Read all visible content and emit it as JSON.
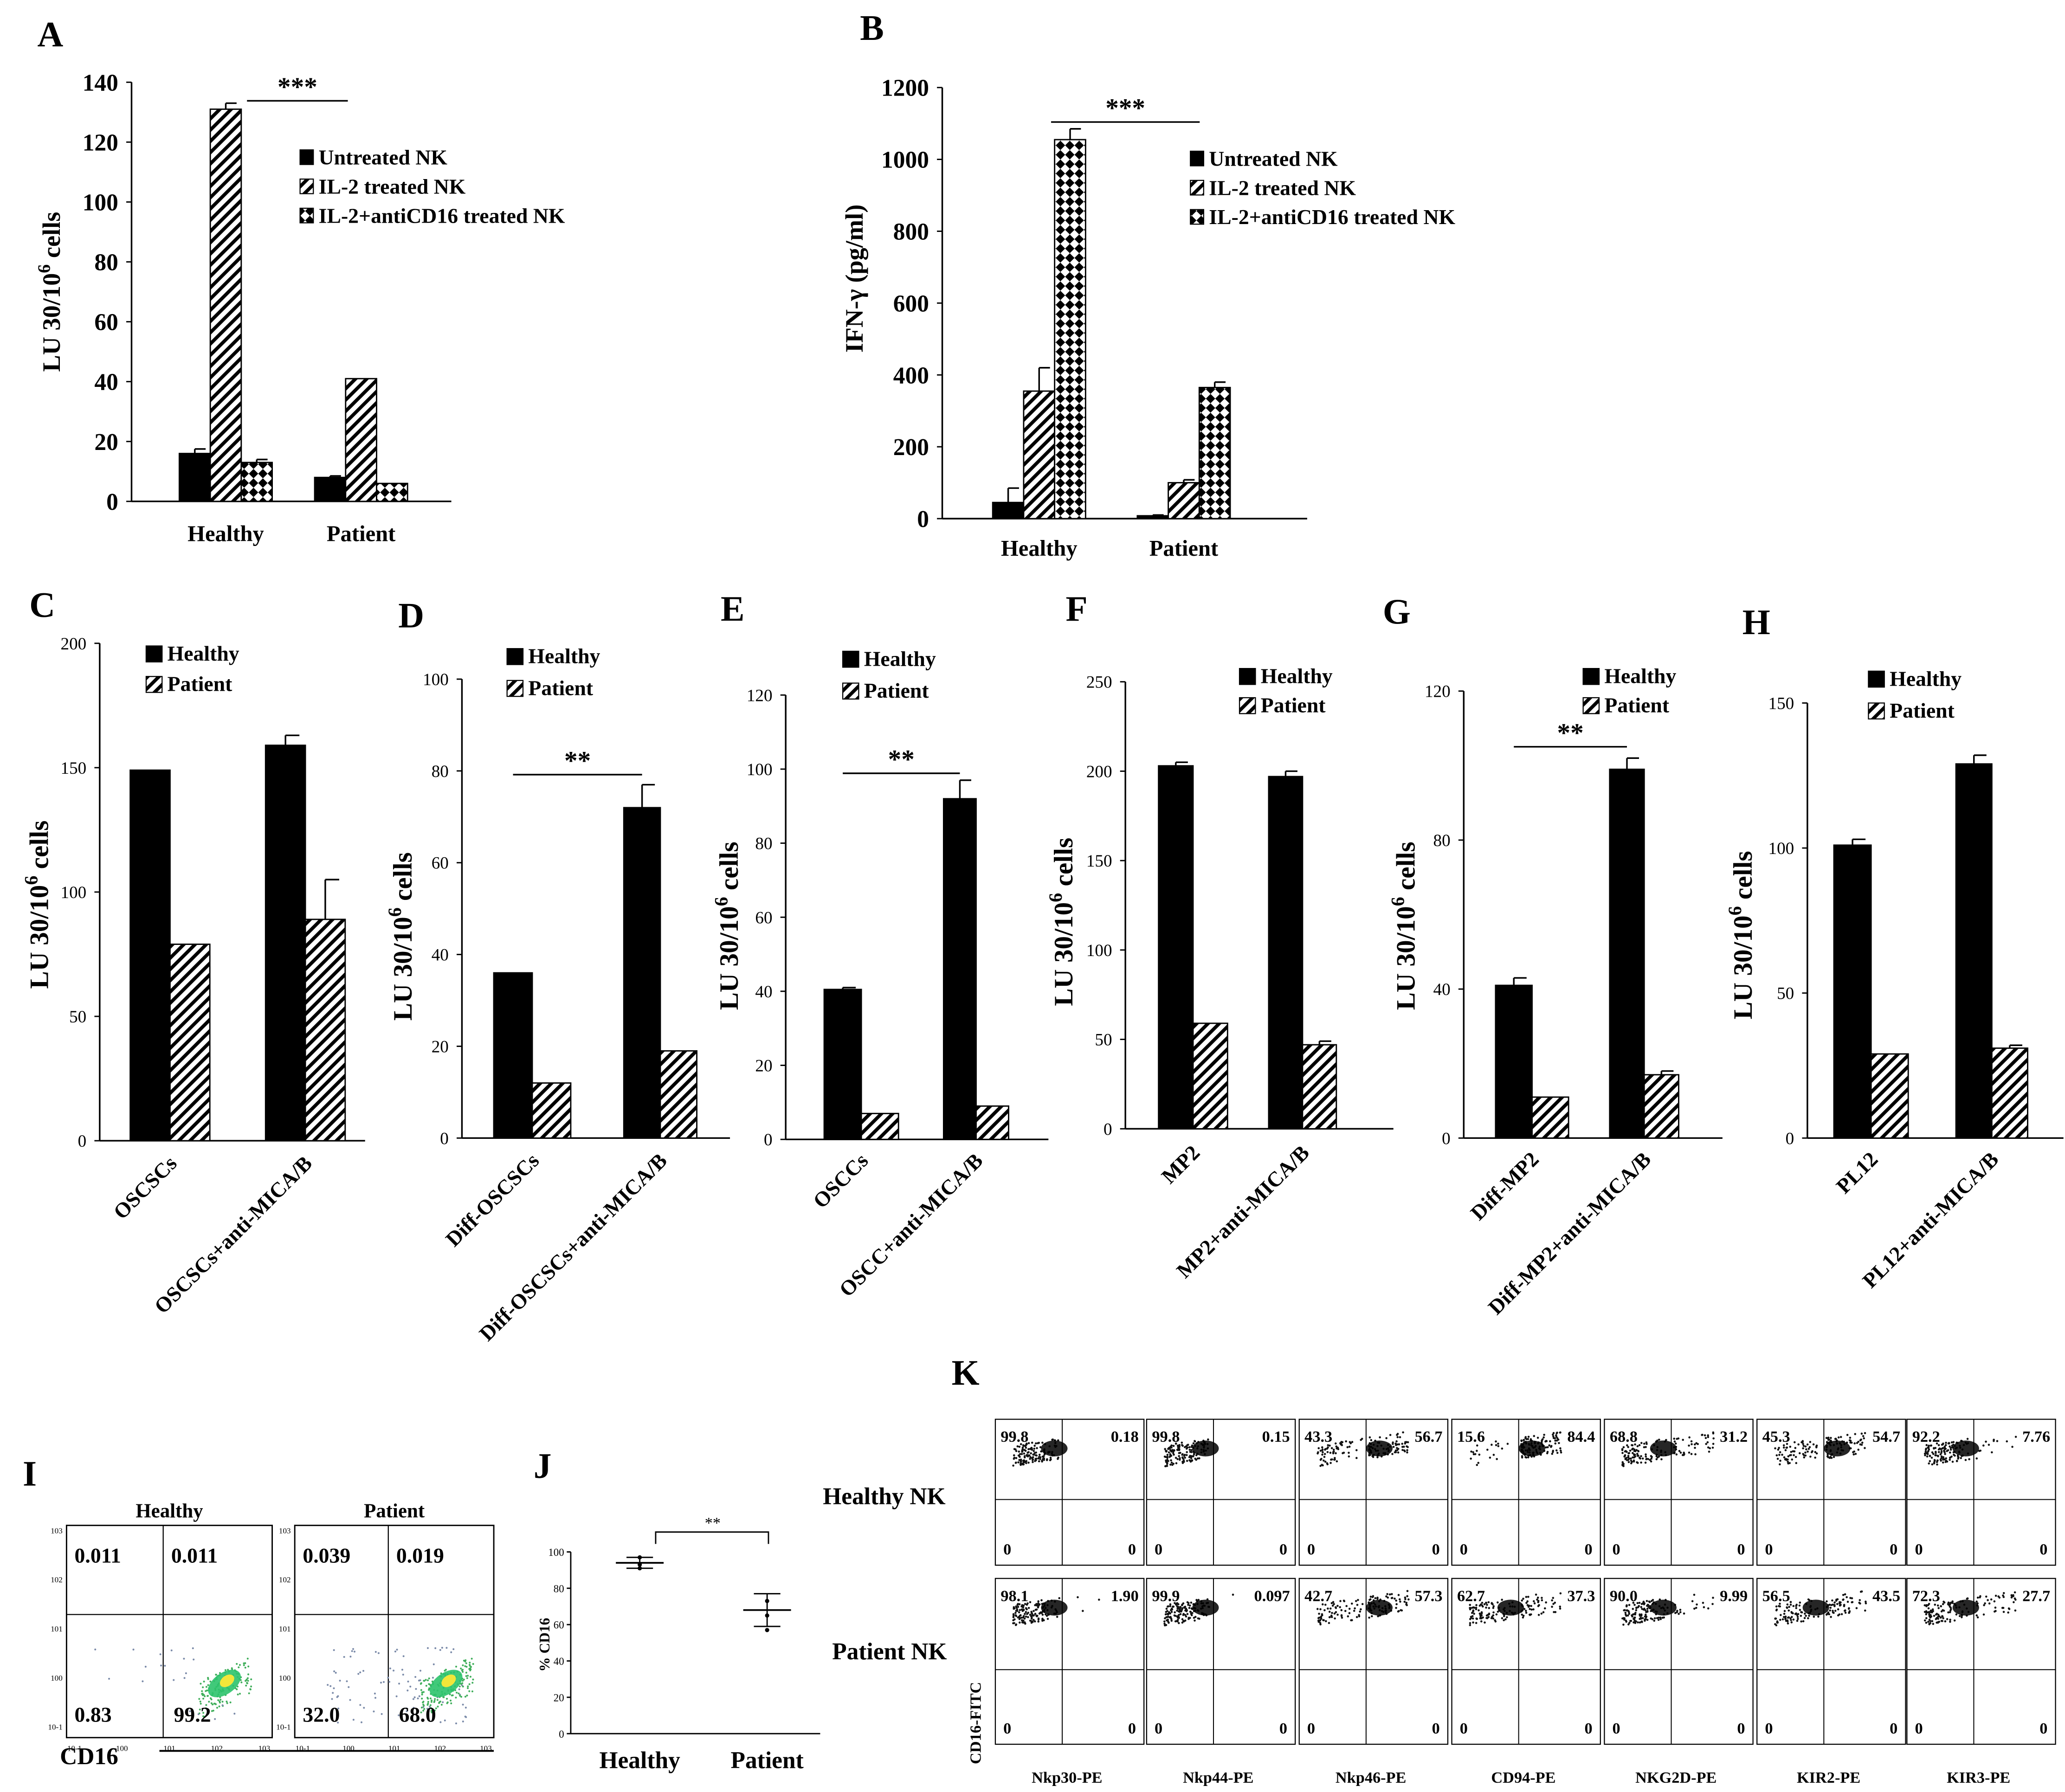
{
  "figure": {
    "chart_data": [
      {
        "panel": "A",
        "type": "bar",
        "categories": [
          "Healthy",
          "Patient"
        ],
        "ylabel": "LU 30/10^6 cells",
        "ylim": [
          0,
          140
        ],
        "yticks": [
          0,
          20,
          40,
          60,
          80,
          100,
          120,
          140
        ],
        "series": [
          {
            "name": "Untreated NK",
            "pattern": "solid",
            "values": [
              16,
              8
            ],
            "errors": [
              1.5,
              0.5
            ]
          },
          {
            "name": "IL-2 treated NK",
            "pattern": "diag",
            "values": [
              131,
              41
            ],
            "errors": [
              2,
              0
            ]
          },
          {
            "name": "IL-2+antiCD16 treated NK",
            "pattern": "checker",
            "values": [
              13,
              6
            ],
            "errors": [
              1,
              0
            ]
          }
        ],
        "significance": [
          {
            "label": "***",
            "from": [
              0,
              1
            ],
            "to": [
              1,
              0
            ]
          }
        ]
      },
      {
        "panel": "B",
        "type": "bar",
        "categories": [
          "Healthy",
          "Patient"
        ],
        "ylabel": "IFN-γ (pg/ml)",
        "ylim": [
          0,
          1200
        ],
        "yticks": [
          0,
          200,
          400,
          600,
          800,
          1000,
          1200
        ],
        "series": [
          {
            "name": "Untreated NK",
            "pattern": "solid",
            "values": [
              45,
              8
            ],
            "errors": [
              40,
              2
            ]
          },
          {
            "name": "IL-2 treated NK",
            "pattern": "diag",
            "values": [
              355,
              100
            ],
            "errors": [
              65,
              8
            ]
          },
          {
            "name": "IL-2+antiCD16 treated NK",
            "pattern": "checker",
            "values": [
              1055,
              365
            ],
            "errors": [
              30,
              15
            ]
          }
        ],
        "significance": [
          {
            "label": "***",
            "from": [
              0,
              2
            ],
            "to": [
              1,
              0
            ]
          }
        ]
      },
      {
        "panel": "C",
        "type": "bar",
        "categories": [
          "OSCSCs",
          "OSCSCs+anti-MICA/B"
        ],
        "ylabel": "LU 30/10^6 cells",
        "ylim": [
          0,
          200
        ],
        "yticks": [
          0,
          50,
          100,
          150,
          200
        ],
        "series": [
          {
            "name": "Healthy",
            "pattern": "solid",
            "values": [
              149,
              159
            ],
            "errors": [
              0,
              4
            ]
          },
          {
            "name": "Patient",
            "pattern": "diag",
            "values": [
              79,
              89
            ],
            "errors": [
              0,
              16
            ]
          }
        ],
        "significance": []
      },
      {
        "panel": "D",
        "type": "bar",
        "categories": [
          "Diff-OSCSCs",
          "Diff-OSCSCs+anti-MICA/B"
        ],
        "ylabel": "LU 30/10^6 cells",
        "ylim": [
          0,
          100
        ],
        "yticks": [
          0,
          20,
          40,
          60,
          80,
          100
        ],
        "series": [
          {
            "name": "Healthy",
            "pattern": "solid",
            "values": [
              36,
              72
            ],
            "errors": [
              0,
              5
            ]
          },
          {
            "name": "Patient",
            "pattern": "diag",
            "values": [
              12,
              19
            ],
            "errors": [
              0,
              0
            ]
          }
        ],
        "significance": [
          {
            "label": "**",
            "from": [
              0,
              0
            ],
            "to": [
              1,
              0
            ]
          }
        ]
      },
      {
        "panel": "E",
        "type": "bar",
        "categories": [
          "OSCCs",
          "OSCC+anti-MICA/B"
        ],
        "ylabel": "LU 30/10^6 cells",
        "ylim": [
          0,
          120
        ],
        "yticks": [
          0,
          20,
          40,
          60,
          80,
          100,
          120
        ],
        "series": [
          {
            "name": "Healthy",
            "pattern": "solid",
            "values": [
              40.5,
              92
            ],
            "errors": [
              0.5,
              5
            ]
          },
          {
            "name": "Patient",
            "pattern": "diag",
            "values": [
              7,
              9
            ],
            "errors": [
              0,
              0
            ]
          }
        ],
        "significance": [
          {
            "label": "**",
            "from": [
              0,
              0
            ],
            "to": [
              1,
              0
            ]
          }
        ]
      },
      {
        "panel": "F",
        "type": "bar",
        "categories": [
          "MP2",
          "MP2+anti-MICA/B"
        ],
        "ylabel": "LU 30/10^6 cells",
        "ylim": [
          0,
          250
        ],
        "yticks": [
          0,
          50,
          100,
          150,
          200,
          250
        ],
        "series": [
          {
            "name": "Healthy",
            "pattern": "solid",
            "values": [
              203,
              197
            ],
            "errors": [
              2,
              3
            ]
          },
          {
            "name": "Patient",
            "pattern": "diag",
            "values": [
              59,
              47
            ],
            "errors": [
              0,
              2
            ]
          }
        ],
        "significance": []
      },
      {
        "panel": "G",
        "type": "bar",
        "categories": [
          "Diff-MP2",
          "Diff-MP2+anti-MICA/B"
        ],
        "ylabel": "LU 30/10^6 cells",
        "ylim": [
          0,
          120
        ],
        "yticks": [
          0,
          40,
          80,
          120
        ],
        "series": [
          {
            "name": "Healthy",
            "pattern": "solid",
            "values": [
              41,
              99
            ],
            "errors": [
              2,
              3
            ]
          },
          {
            "name": "Patient",
            "pattern": "diag",
            "values": [
              11,
              17
            ],
            "errors": [
              0,
              1
            ]
          }
        ],
        "significance": [
          {
            "label": "**",
            "from": [
              0,
              0
            ],
            "to": [
              1,
              0
            ]
          }
        ]
      },
      {
        "panel": "H",
        "type": "bar",
        "categories": [
          "PL12",
          "PL12+anti-MICA/B"
        ],
        "ylabel": "LU 30/10^6 cells",
        "ylim": [
          0,
          150
        ],
        "yticks": [
          0,
          50,
          100,
          150
        ],
        "series": [
          {
            "name": "Healthy",
            "pattern": "solid",
            "values": [
              101,
              129
            ],
            "errors": [
              2,
              3
            ]
          },
          {
            "name": "Patient",
            "pattern": "diag",
            "values": [
              29,
              31
            ],
            "errors": [
              0,
              1
            ]
          }
        ],
        "significance": []
      },
      {
        "panel": "I",
        "type": "scatter",
        "plot": "flow-cytometry",
        "xlabel": "CD16",
        "samples": [
          {
            "name": "Healthy",
            "quadrants": {
              "ul": "0.011",
              "ur": "0.011",
              "ll": "0.83",
              "lr": "99.2"
            }
          },
          {
            "name": "Patient",
            "quadrants": {
              "ul": "0.039",
              "ur": "0.019",
              "ll": "32.0",
              "lr": "68.0"
            }
          }
        ],
        "axis_ticks": [
          "10-1",
          "100",
          "101",
          "102",
          "103"
        ]
      },
      {
        "panel": "J",
        "type": "scatter",
        "categories": [
          "Healthy",
          "Patient"
        ],
        "ylabel": "% CD16",
        "ylim": [
          0,
          100
        ],
        "yticks": [
          0,
          20,
          40,
          60,
          80,
          100
        ],
        "points": [
          [
            97,
            93,
            91
          ],
          [
            73,
            65,
            57
          ]
        ],
        "means": [
          94,
          68
        ],
        "error_bars": [
          [
            91,
            97
          ],
          [
            59,
            77
          ]
        ],
        "significance": [
          {
            "label": "**"
          }
        ]
      },
      {
        "panel": "K",
        "type": "scatter",
        "plot": "flow-cytometry",
        "ylabel": "CD16-FITC",
        "rows": [
          "Healthy NK",
          "Patient NK"
        ],
        "columns": [
          "Nkp30-PE",
          "Nkp44-PE",
          "Nkp46-PE",
          "CD94-PE",
          "NKG2D-PE",
          "KIR2-PE",
          "KIR3-PE"
        ],
        "quadrants": [
          [
            [
              "99.8",
              "0.18"
            ],
            [
              "99.8",
              "0.15"
            ],
            [
              "43.3",
              "56.7"
            ],
            [
              "15.6",
              "84.4"
            ],
            [
              "68.8",
              "31.2"
            ],
            [
              "45.3",
              "54.7"
            ],
            [
              "92.2",
              "7.76"
            ]
          ],
          [
            [
              "98.1",
              "1.90"
            ],
            [
              "99.9",
              "0.097"
            ],
            [
              "42.7",
              "57.3"
            ],
            [
              "62.7",
              "37.3"
            ],
            [
              "90.0",
              "9.99"
            ],
            [
              "56.5",
              "43.5"
            ],
            [
              "72.3",
              "27.7"
            ]
          ]
        ],
        "lower_quadrants": "0"
      }
    ]
  }
}
